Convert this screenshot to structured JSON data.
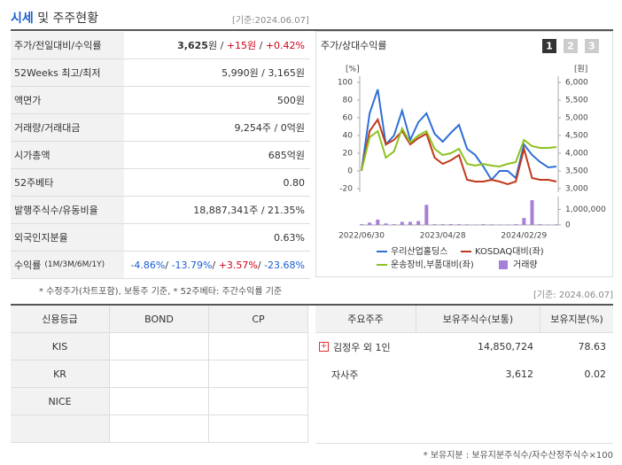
{
  "header": {
    "title": "시세",
    "title_rest": "및 주주현황",
    "date": "[기준:2024.06.07]"
  },
  "quote_table": {
    "rows": [
      {
        "label": "주가/전일대비/수익률",
        "parts": [
          {
            "text": "3,625",
            "tone": "bold"
          },
          {
            "text": "원 / ",
            "tone": "plain"
          },
          {
            "text": "+15원",
            "tone": "up"
          },
          {
            "text": " / ",
            "tone": "plain"
          },
          {
            "text": "+0.42%",
            "tone": "up"
          }
        ]
      },
      {
        "label": "52Weeks 최고/최저",
        "parts": [
          {
            "text": "5,990원 / 3,165원",
            "tone": "plain"
          }
        ]
      },
      {
        "label": "액면가",
        "parts": [
          {
            "text": "500원",
            "tone": "plain"
          }
        ]
      },
      {
        "label": "거래량/거래대금",
        "parts": [
          {
            "text": "9,254주 / 0억원",
            "tone": "plain"
          }
        ]
      },
      {
        "label": "시가총액",
        "parts": [
          {
            "text": "685억원",
            "tone": "plain"
          }
        ]
      },
      {
        "label": "52주베타",
        "parts": [
          {
            "text": "0.80",
            "tone": "plain"
          }
        ]
      },
      {
        "label": "발행주식수/유동비율",
        "parts": [
          {
            "text": "18,887,341주 / 21.35%",
            "tone": "plain"
          }
        ]
      },
      {
        "label": "외국인지분율",
        "parts": [
          {
            "text": "0.63%",
            "tone": "plain"
          }
        ]
      },
      {
        "label": "수익률",
        "note": "(1M/3M/6M/1Y)",
        "parts": [
          {
            "text": "-4.86%",
            "tone": "down"
          },
          {
            "text": "/ ",
            "tone": "plain"
          },
          {
            "text": "-13.79%",
            "tone": "down"
          },
          {
            "text": "/ ",
            "tone": "plain"
          },
          {
            "text": "+3.57%",
            "tone": "up"
          },
          {
            "text": "/ ",
            "tone": "plain"
          },
          {
            "text": "-23.68%",
            "tone": "down"
          }
        ]
      }
    ],
    "footnote": "* 수정주가(차트포함), 보통주 기준, * 52주베타: 주간수익률 기준"
  },
  "chart_data": {
    "type": "line",
    "title": "주가/상대수익률",
    "buttons": [
      "1",
      "2",
      "3"
    ],
    "ylabel": "[%]",
    "y2label": "[원]",
    "categories": [
      "2022/06/30",
      null,
      null,
      null,
      null,
      null,
      null,
      null,
      null,
      null,
      "2023/04/28",
      null,
      null,
      null,
      null,
      null,
      null,
      null,
      null,
      null,
      "2024/02/29",
      null,
      null,
      null,
      null
    ],
    "ylim": [
      -20,
      100
    ],
    "yticks": [
      100,
      80,
      60,
      40,
      20,
      0,
      -20
    ],
    "y2lim": [
      3000,
      6000
    ],
    "y2ticks": [
      {
        "value": 6000,
        "label": "6,000"
      },
      {
        "value": 5500,
        "label": "5,500"
      },
      {
        "value": 5000,
        "label": "5,000"
      },
      {
        "value": 4500,
        "label": "4,500"
      },
      {
        "value": 4000,
        "label": "4,000"
      },
      {
        "value": 3500,
        "label": "3,500"
      },
      {
        "value": 3000,
        "label": "3,000"
      }
    ],
    "y3lim": [
      0,
      1600000
    ],
    "y3ticks": [
      {
        "value": 1000000,
        "label": "1,000,000"
      },
      0
    ],
    "series": [
      {
        "name": "우리산업홀딩스",
        "color": "#2f6fd6",
        "axis": "y2",
        "values": [
          3500,
          5125,
          5800,
          4250,
          4500,
          5200,
          4375,
          4875,
          5125,
          4550,
          4325,
          4575,
          4800,
          4125,
          3950,
          3625,
          3250,
          3500,
          3500,
          3300,
          4250,
          3950,
          3750,
          3600,
          3625
        ]
      },
      {
        "name": "KOSDAQ대비(좌)",
        "color": "#c0391b",
        "values": [
          0,
          45,
          58,
          30,
          35,
          45,
          30,
          37,
          42,
          15,
          8,
          12,
          18,
          -10,
          -12,
          -12,
          -10,
          -12,
          -15,
          -12,
          25,
          -8,
          -10,
          -10,
          -12
        ]
      },
      {
        "name": "운송장비,부품대비(좌)",
        "color": "#8dc21f",
        "values": [
          0,
          38,
          45,
          15,
          22,
          48,
          32,
          40,
          45,
          25,
          18,
          20,
          25,
          8,
          6,
          8,
          6,
          5,
          8,
          10,
          35,
          28,
          26,
          26,
          27
        ]
      },
      {
        "name": "거래량",
        "color": "#a57fd8",
        "axis": "y3",
        "kind": "bar",
        "values": [
          50000,
          150000,
          350000,
          100000,
          50000,
          200000,
          200000,
          250000,
          1300000,
          50000,
          50000,
          60000,
          50000,
          40000,
          30000,
          50000,
          40000,
          30000,
          30000,
          50000,
          450000,
          1600000,
          50000,
          30000,
          40000
        ]
      }
    ]
  },
  "rating_table": {
    "headers": [
      "신용등급",
      "BOND",
      "CP"
    ],
    "rows": [
      "KIS",
      "KR",
      "NICE"
    ]
  },
  "holders_table": {
    "date": "[기준: 2024.06.07]",
    "headers": [
      "주요주주",
      "보유주식수(보통)",
      "보유지분(%)"
    ],
    "rows": [
      [
        "김정우 외 1인",
        "14,850,724",
        "78.63"
      ],
      [
        "자사주",
        "3,612",
        "0.02"
      ]
    ],
    "footnote": "* 보유지분 : 보유지분주식수/자수산정주식수×100"
  }
}
